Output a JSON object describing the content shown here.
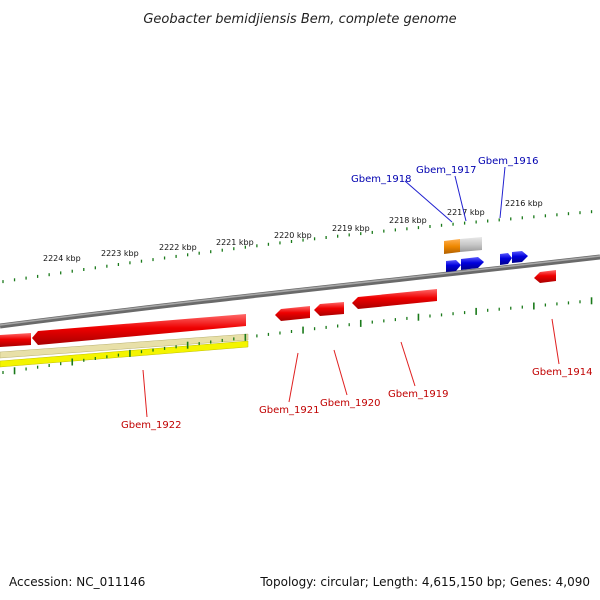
{
  "title": "Geobacter bemidjiensis Bem, complete genome",
  "footer": {
    "accession": "Accession: NC_011146",
    "summary": "Topology: circular; Length: 4,615,150 bp; Genes: 4,090"
  },
  "colors": {
    "backbone": "#7f7f7f",
    "tick": "#1a7a1a",
    "reverse_gene": "#ee0000",
    "forward_gene": "#0000dd",
    "rna_gene": "#ee8800",
    "pseudo_gene": "#c8c8c8",
    "yellow_track": "#f4f400",
    "pale_track": "#e8e0a8"
  },
  "ruler_labels": [
    "2224 kbp",
    "2223 kbp",
    "2222 kbp",
    "2221 kbp",
    "2220 kbp",
    "2219 kbp",
    "2218 kbp",
    "2217 kbp",
    "2216 kbp"
  ],
  "gene_labels": {
    "red": [
      "Gbem_1922",
      "Gbem_1921",
      "Gbem_1920",
      "Gbem_1919",
      "Gbem_1914"
    ],
    "blue": [
      "Gbem_1918",
      "Gbem_1917",
      "Gbem_1916"
    ]
  }
}
